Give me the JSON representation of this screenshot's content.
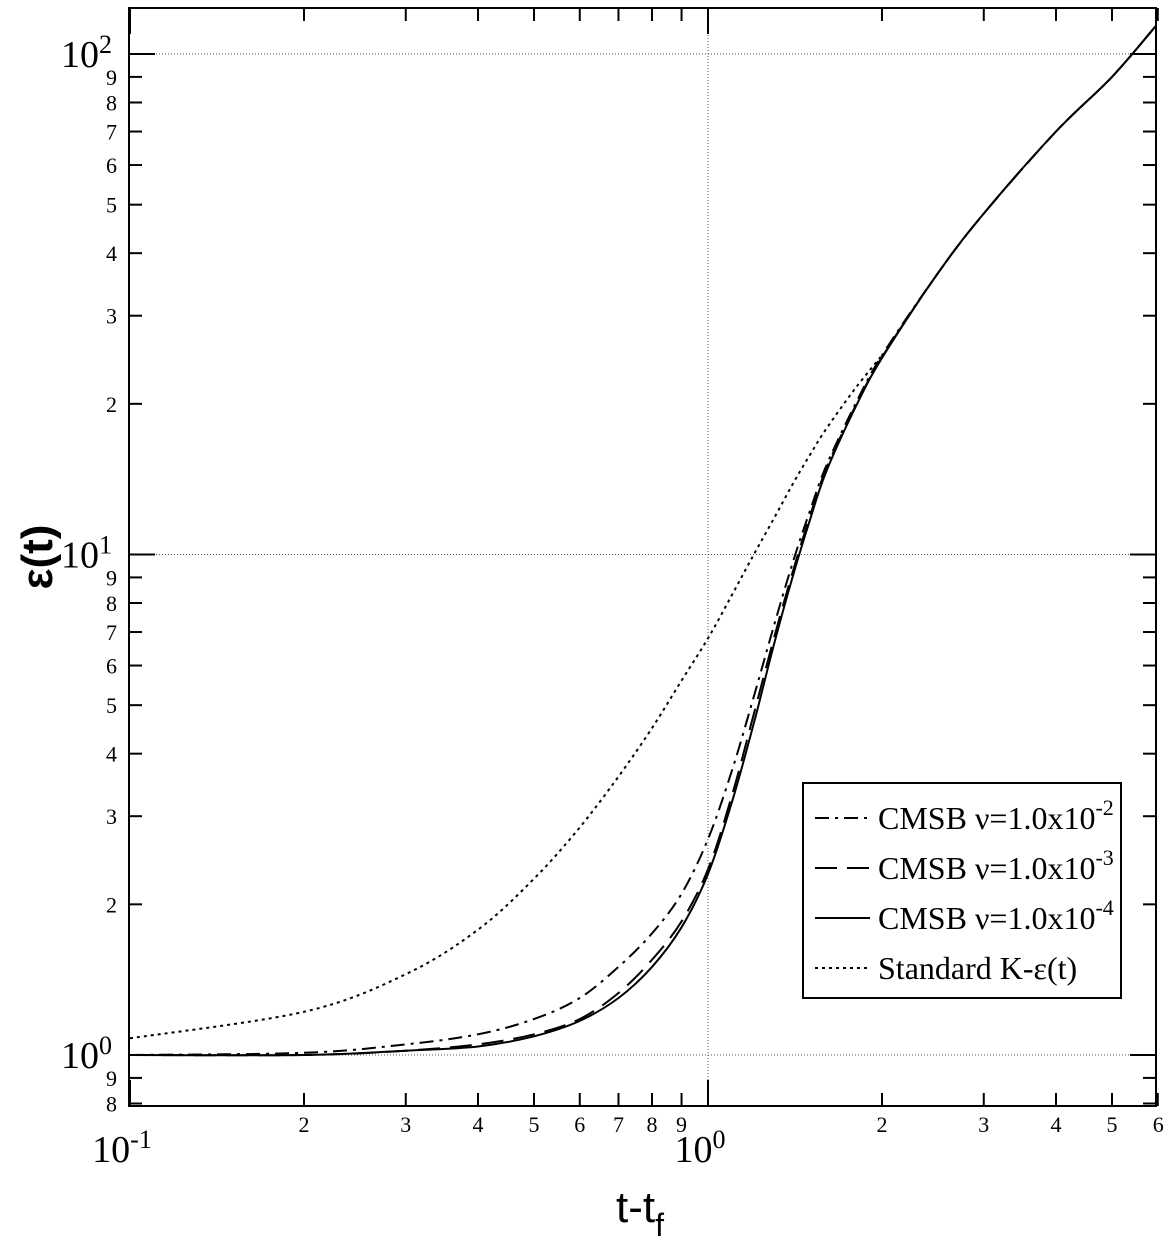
{
  "chart_data": {
    "type": "line",
    "xlabel": "t-t",
    "xlabel_sub": "f",
    "ylabel": "ε(t)",
    "x_scale": "log",
    "y_scale": "log",
    "xlim": [
      0.1,
      6
    ],
    "ylim": [
      0.8,
      150
    ],
    "grid": "dotted lines at x = 10^0 and y = 10^0, 10^1, 10^2",
    "legend_position": "bottom-right",
    "x_decade_ticks": [
      {
        "value": 0.1,
        "base": "10",
        "exp": "-1"
      },
      {
        "value": 1,
        "base": "10",
        "exp": "0"
      }
    ],
    "x_minor_ticks": [
      {
        "value": 0.2,
        "label": "2"
      },
      {
        "value": 0.3,
        "label": "3"
      },
      {
        "value": 0.4,
        "label": "4"
      },
      {
        "value": 0.5,
        "label": "5"
      },
      {
        "value": 0.6,
        "label": "6"
      },
      {
        "value": 0.7,
        "label": "7"
      },
      {
        "value": 0.8,
        "label": "8"
      },
      {
        "value": 0.9,
        "label": "9"
      },
      {
        "value": 2,
        "label": "2"
      },
      {
        "value": 3,
        "label": "3"
      },
      {
        "value": 4,
        "label": "4"
      },
      {
        "value": 5,
        "label": "5"
      },
      {
        "value": 6,
        "label": "6"
      }
    ],
    "y_decade_ticks": [
      {
        "value": 1,
        "base": "10",
        "exp": "0"
      },
      {
        "value": 10,
        "base": "10",
        "exp": "1"
      },
      {
        "value": 100,
        "base": "10",
        "exp": "2"
      }
    ],
    "y_minor_ticks": [
      {
        "value": 0.8,
        "label": "8"
      },
      {
        "value": 0.9,
        "label": "9"
      },
      {
        "value": 2,
        "label": "2"
      },
      {
        "value": 3,
        "label": "3"
      },
      {
        "value": 4,
        "label": "4"
      },
      {
        "value": 5,
        "label": "5"
      },
      {
        "value": 6,
        "label": "6"
      },
      {
        "value": 7,
        "label": "7"
      },
      {
        "value": 8,
        "label": "8"
      },
      {
        "value": 9,
        "label": "9"
      },
      {
        "value": 20,
        "label": "2"
      },
      {
        "value": 30,
        "label": "3"
      },
      {
        "value": 40,
        "label": "4"
      },
      {
        "value": 50,
        "label": "5"
      },
      {
        "value": 60,
        "label": "6"
      },
      {
        "value": 70,
        "label": "7"
      },
      {
        "value": 80,
        "label": "8"
      },
      {
        "value": 90,
        "label": "9"
      }
    ],
    "series": [
      {
        "name": "CMSB ν=1.0x10",
        "exp": "-2",
        "dash": "14 6 3 6",
        "x": [
          0.1,
          0.2,
          0.3,
          0.4,
          0.5,
          0.6,
          0.7,
          0.8,
          0.9,
          1.0,
          1.1,
          1.2,
          1.3,
          1.4,
          1.5,
          1.6,
          1.8,
          2.0,
          2.5,
          3.0,
          4.0,
          5.0,
          6.0
        ],
        "values": [
          1.0,
          1.01,
          1.05,
          1.1,
          1.18,
          1.3,
          1.5,
          1.75,
          2.1,
          2.7,
          3.7,
          5.2,
          7.2,
          9.6,
          12.2,
          15.0,
          20.0,
          25.0,
          36.5,
          48.0,
          70.0,
          90.0,
          115.0
        ]
      },
      {
        "name": "CMSB ν=1.0x10",
        "exp": "-3",
        "dash": "22 10",
        "x": [
          0.1,
          0.2,
          0.3,
          0.4,
          0.5,
          0.6,
          0.7,
          0.8,
          0.9,
          1.0,
          1.1,
          1.2,
          1.3,
          1.4,
          1.5,
          1.6,
          1.8,
          2.0,
          2.5,
          3.0,
          4.0,
          5.0,
          6.0
        ],
        "values": [
          1.0,
          1.0,
          1.02,
          1.05,
          1.1,
          1.18,
          1.33,
          1.55,
          1.85,
          2.35,
          3.3,
          4.8,
          6.8,
          9.2,
          11.9,
          14.8,
          19.8,
          24.8,
          36.5,
          48.0,
          70.0,
          90.0,
          115.0
        ]
      },
      {
        "name": "CMSB ν=1.0x10",
        "exp": "-4",
        "dash": "",
        "x": [
          0.1,
          0.2,
          0.3,
          0.4,
          0.5,
          0.6,
          0.7,
          0.8,
          0.9,
          1.0,
          1.1,
          1.2,
          1.3,
          1.4,
          1.5,
          1.6,
          1.8,
          2.0,
          2.5,
          3.0,
          4.0,
          5.0,
          6.0
        ],
        "values": [
          1.0,
          1.0,
          1.02,
          1.04,
          1.09,
          1.17,
          1.3,
          1.5,
          1.8,
          2.3,
          3.2,
          4.6,
          6.6,
          9.0,
          11.7,
          14.6,
          19.7,
          24.7,
          36.5,
          48.0,
          70.0,
          90.0,
          115.0
        ]
      },
      {
        "name": "Standard K-ε(t)",
        "exp": "",
        "dash": "3 4",
        "x": [
          0.1,
          0.2,
          0.3,
          0.4,
          0.5,
          0.6,
          0.7,
          0.8,
          0.9,
          1.0,
          1.1,
          1.2,
          1.3,
          1.4,
          1.5,
          1.6,
          1.8,
          2.0
        ],
        "values": [
          1.08,
          1.22,
          1.45,
          1.78,
          2.25,
          2.85,
          3.6,
          4.5,
          5.6,
          6.8,
          8.3,
          10.0,
          11.8,
          13.8,
          15.8,
          17.8,
          21.5,
          25.0
        ]
      }
    ]
  }
}
